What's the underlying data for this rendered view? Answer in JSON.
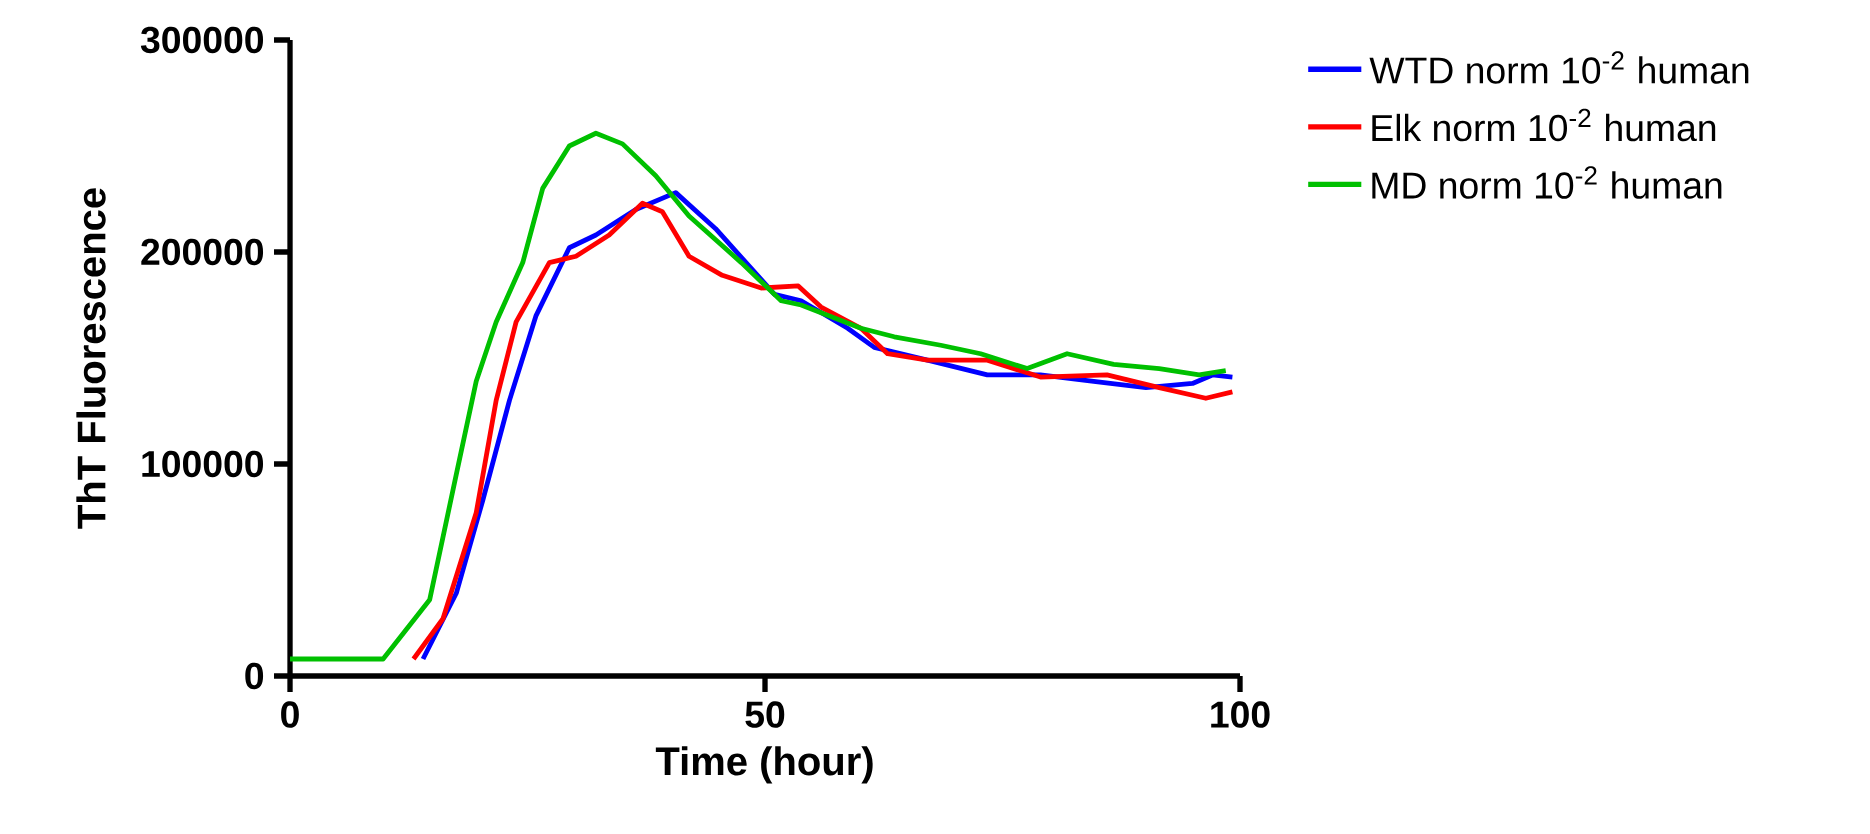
{
  "chart_data": {
    "type": "line",
    "xlabel": "Time (hour)",
    "ylabel": "ThT Fluorescence",
    "xlim": [
      0,
      100
    ],
    "ylim": [
      0,
      300000
    ],
    "xticks": [
      0,
      50,
      100
    ],
    "yticks": [
      0,
      100000,
      200000,
      300000
    ],
    "grid": false,
    "legend": "right",
    "marker": "none",
    "line_style": "solid",
    "series": [
      {
        "name": "WTD norm 10$^{-2}$ human",
        "color": "#0000ff",
        "x": [
          14,
          17.5,
          20.3,
          23.1,
          25.9,
          29.4,
          32.2,
          36.4,
          40.6,
          44.8,
          51,
          53.8,
          58.7,
          61.5,
          67.1,
          73.4,
          79,
          84.6,
          90.1,
          95,
          97.1,
          99.2
        ],
        "values": [
          8000,
          39000,
          83000,
          130000,
          170000,
          202000,
          208000,
          220000,
          228000,
          211000,
          180000,
          177000,
          164000,
          155000,
          149000,
          142000,
          142000,
          139000,
          136000,
          138000,
          142000,
          141000
        ]
      },
      {
        "name": "Elk norm 10$^{-2}$ human",
        "color": "#ff0000",
        "x": [
          13,
          16.1,
          19.6,
          21.7,
          23.8,
          27.3,
          30.1,
          33.6,
          37.1,
          39.2,
          42,
          45.5,
          49.6,
          53.5,
          55.9,
          60.1,
          62.9,
          67.1,
          73.4,
          79,
          86,
          91.5,
          96.4,
          99.2
        ],
        "values": [
          8000,
          27000,
          77000,
          130000,
          167000,
          195000,
          198000,
          208000,
          223000,
          219000,
          198000,
          189000,
          183000,
          184000,
          174000,
          164000,
          152000,
          149000,
          149000,
          141000,
          142000,
          136000,
          131000,
          134000
        ]
      },
      {
        "name": "MD norm 10$^{-2}$ human",
        "color": "#00c000",
        "x": [
          0,
          9.8,
          14.7,
          17.5,
          19.6,
          21.7,
          24.5,
          26.6,
          29.4,
          32.2,
          35,
          38.5,
          42,
          47.5,
          51.7,
          53.8,
          60.1,
          63.6,
          68.5,
          72.7,
          77.6,
          81.8,
          86.7,
          91.5,
          95.7,
          98.5
        ],
        "values": [
          8000,
          8000,
          36000,
          95000,
          139000,
          167000,
          195000,
          230000,
          250000,
          256000,
          251000,
          236000,
          217000,
          195000,
          177000,
          175000,
          164000,
          160000,
          156000,
          152000,
          145000,
          152000,
          147000,
          145000,
          142000,
          144000
        ]
      }
    ]
  }
}
